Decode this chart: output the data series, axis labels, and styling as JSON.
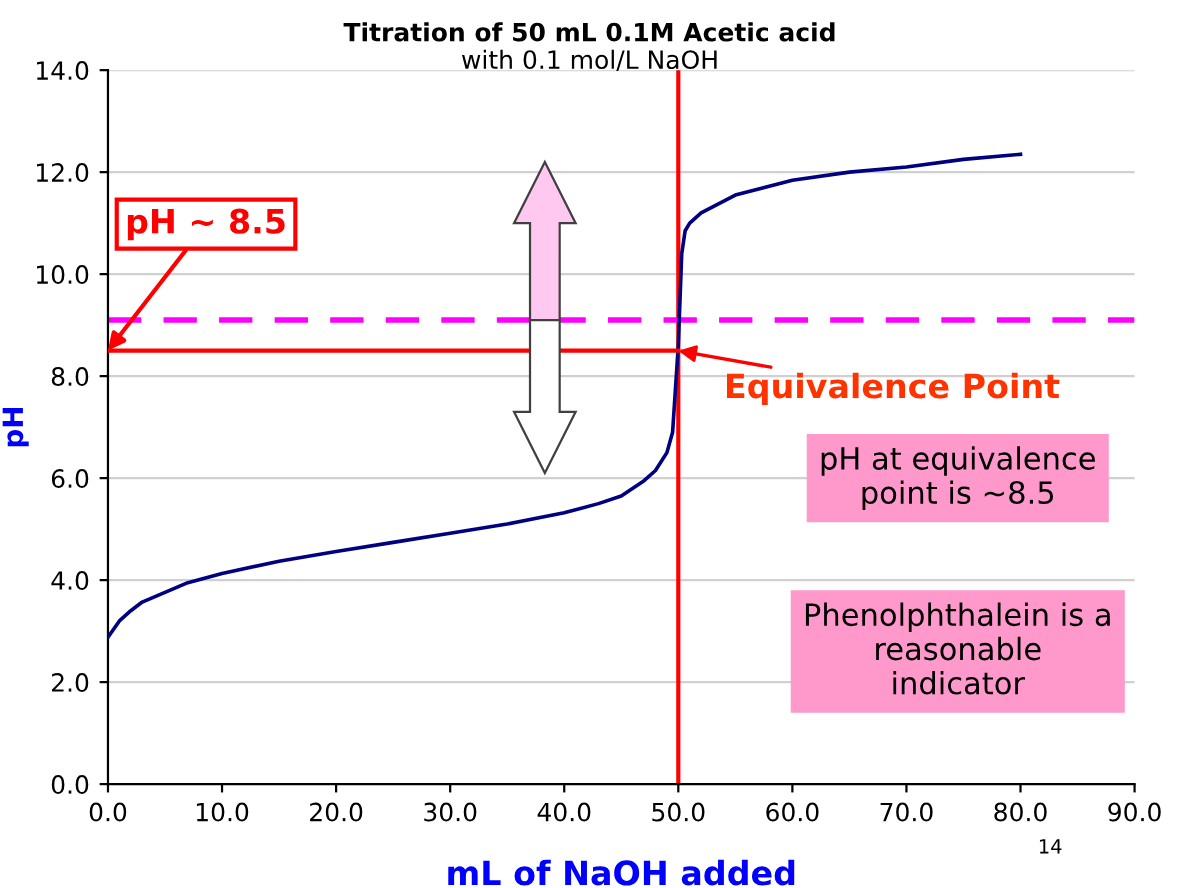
{
  "chart_data": {
    "type": "line",
    "title": "Titration of 50 mL 0.1M Acetic acid",
    "subtitle": "with 0.1 mol/L NaOH",
    "xlabel": "mL of NaOH added",
    "ylabel": "pH",
    "xlim": [
      0,
      90
    ],
    "ylim": [
      0,
      14
    ],
    "xticks": [
      {
        "value": 0,
        "label": "0.0"
      },
      {
        "value": 10,
        "label": "10.0"
      },
      {
        "value": 20,
        "label": "20.0"
      },
      {
        "value": 30,
        "label": "30.0"
      },
      {
        "value": 40,
        "label": "40.0"
      },
      {
        "value": 50,
        "label": "50.0"
      },
      {
        "value": 60,
        "label": "60.0"
      },
      {
        "value": 70,
        "label": "70.0"
      },
      {
        "value": 80,
        "label": "80.0"
      },
      {
        "value": 90,
        "label": "90.0"
      }
    ],
    "yticks": [
      {
        "value": 0,
        "label": "0.0"
      },
      {
        "value": 2,
        "label": "2.0"
      },
      {
        "value": 4,
        "label": "4.0"
      },
      {
        "value": 6,
        "label": "6.0"
      },
      {
        "value": 8,
        "label": "8.0"
      },
      {
        "value": 10,
        "label": "10.0"
      },
      {
        "value": 12,
        "label": "12.0"
      },
      {
        "value": 14,
        "label": "14.0"
      }
    ],
    "grid": "y",
    "legend": false,
    "series": [
      {
        "color": "#000080",
        "x": [
          0,
          1,
          2,
          3,
          5,
          7,
          10,
          15,
          20,
          25,
          30,
          35,
          40,
          43,
          45,
          47,
          48,
          49,
          49.5,
          50,
          50.3,
          50.6,
          51,
          52,
          55,
          60,
          65,
          70,
          75,
          80
        ],
        "values": [
          2.88,
          3.2,
          3.4,
          3.57,
          3.76,
          3.95,
          4.13,
          4.37,
          4.56,
          4.74,
          4.92,
          5.1,
          5.32,
          5.5,
          5.65,
          5.95,
          6.15,
          6.5,
          6.9,
          8.6,
          10.4,
          10.85,
          11.0,
          11.2,
          11.55,
          11.84,
          12.0,
          12.1,
          12.25,
          12.35
        ]
      },
      {
        "color": "#ff0000",
        "x": [
          0,
          50
        ],
        "values": [
          8.5,
          8.5
        ]
      }
    ],
    "ref_lines": [
      {
        "axis": "x",
        "value": 50,
        "color": "#ff0000",
        "line_style": "solid"
      },
      {
        "axis": "y",
        "value": 9.1,
        "color": "#ff00ff",
        "line_style": "dashed"
      }
    ],
    "annotations": [
      {
        "text": "pH ~ 8.5",
        "x": 0,
        "y": 8.5
      },
      {
        "text": "Equivalence Point",
        "x": 50,
        "y": 8.5
      },
      "pH at equivalence point is ~8.5",
      "Phenolphthalein is a reasonable indicator",
      "14"
    ]
  }
}
